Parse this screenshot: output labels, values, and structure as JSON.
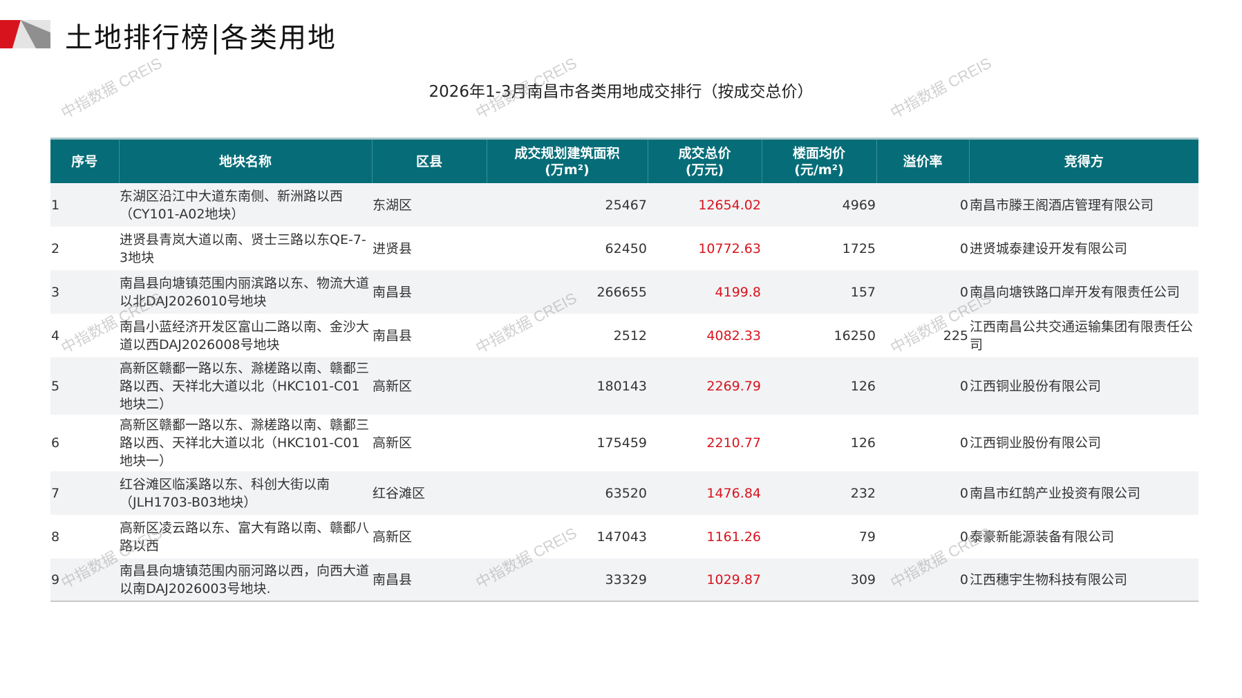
{
  "header": {
    "title_left": "土地排行榜",
    "title_right": "各类用地"
  },
  "subtitle": "2026年1-3月南昌市各类用地成交排行（按成交总价）",
  "colors": {
    "header_bg": "#066d78",
    "price_red": "#d7141d",
    "logo_red": "#d7141d",
    "logo_gray": "#b5b5b5"
  },
  "watermark": "中指数据 CREIS",
  "table": {
    "columns": [
      "序号",
      "地块名称",
      "区县",
      "成交规划建筑面积（万m²）",
      "成交总价（万元）",
      "楼面均价（元/m²）",
      "溢价率",
      "竞得方"
    ],
    "column_lines": [
      [
        "序号"
      ],
      [
        "地块名称"
      ],
      [
        "区县"
      ],
      [
        "成交规划建筑面积",
        "(万m²)"
      ],
      [
        "成交总价",
        "(万元)"
      ],
      [
        "楼面均价",
        "(元/m²)"
      ],
      [
        "溢价率"
      ],
      [
        "竞得方"
      ]
    ],
    "rows": [
      {
        "no": "1",
        "name": "东湖区沿江中大道东南侧、新洲路以西（CY101-A02地块）",
        "district": "东湖区",
        "area": "25467",
        "total": "12654.02",
        "unit_price": "4969",
        "premium": "0",
        "buyer": "南昌市滕王阁酒店管理有限公司"
      },
      {
        "no": "2",
        "name": "进贤县青岚大道以南、贤士三路以东QE-7-3地块",
        "district": "进贤县",
        "area": "62450",
        "total": "10772.63",
        "unit_price": "1725",
        "premium": "0",
        "buyer": "进贤城泰建设开发有限公司"
      },
      {
        "no": "3",
        "name": "南昌县向塘镇范围内丽滨路以东、物流大道以北DAJ2026010号地块",
        "district": "南昌县",
        "area": "266655",
        "total": "4199.8",
        "unit_price": "157",
        "premium": "0",
        "buyer": "南昌向塘铁路口岸开发有限责任公司"
      },
      {
        "no": "4",
        "name": "南昌小蓝经济开发区富山二路以南、金沙大道以西DAJ2026008号地块",
        "district": "南昌县",
        "area": "2512",
        "total": "4082.33",
        "unit_price": "16250",
        "premium": "225",
        "buyer": "江西南昌公共交通运输集团有限责任公司"
      },
      {
        "no": "5",
        "name": "高新区赣鄱一路以东、滁槎路以南、赣鄱三路以西、天祥北大道以北（HKC101-C01地块二）",
        "district": "高新区",
        "area": "180143",
        "total": "2269.79",
        "unit_price": "126",
        "premium": "0",
        "buyer": "江西铜业股份有限公司"
      },
      {
        "no": "6",
        "name": "高新区赣鄱一路以东、滁槎路以南、赣鄱三路以西、天祥北大道以北（HKC101-C01地块一）",
        "district": "高新区",
        "area": "175459",
        "total": "2210.77",
        "unit_price": "126",
        "premium": "0",
        "buyer": "江西铜业股份有限公司"
      },
      {
        "no": "7",
        "name": "红谷滩区临溪路以东、科创大街以南（JLH1703-B03地块）",
        "district": "红谷滩区",
        "area": "63520",
        "total": "1476.84",
        "unit_price": "232",
        "premium": "0",
        "buyer": "南昌市红鹄产业投资有限公司"
      },
      {
        "no": "8",
        "name": "高新区凌云路以东、富大有路以南、赣鄱八路以西",
        "district": "高新区",
        "area": "147043",
        "total": "1161.26",
        "unit_price": "79",
        "premium": "0",
        "buyer": "泰豪新能源装备有限公司"
      },
      {
        "no": "9",
        "name": "南昌县向塘镇范围内丽河路以西，向西大道以南DAJ2026003号地块.",
        "district": "南昌县",
        "area": "33329",
        "total": "1029.87",
        "unit_price": "309",
        "premium": "0",
        "buyer": "江西穗宇生物科技有限公司"
      }
    ]
  }
}
